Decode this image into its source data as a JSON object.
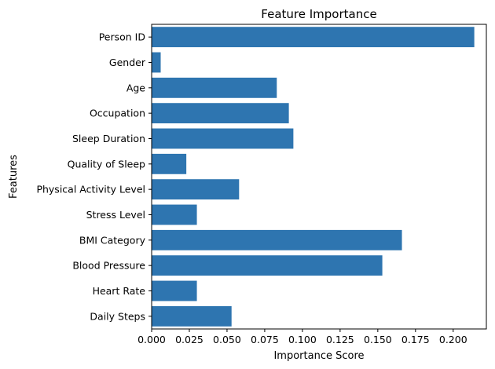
{
  "chart_data": {
    "type": "bar",
    "orientation": "horizontal",
    "title": "Feature Importance",
    "xlabel": "Importance Score",
    "ylabel": "Features",
    "categories": [
      "Person ID",
      "Gender",
      "Age",
      "Occupation",
      "Sleep Duration",
      "Quality of Sleep",
      "Physical Activity Level",
      "Stress Level",
      "BMI Category",
      "Blood Pressure",
      "Heart Rate",
      "Daily Steps"
    ],
    "values": [
      0.214,
      0.006,
      0.083,
      0.091,
      0.094,
      0.023,
      0.058,
      0.03,
      0.166,
      0.153,
      0.03,
      0.053
    ],
    "xlim": [
      0,
      0.222
    ],
    "xticks": [
      "0.000",
      "0.025",
      "0.050",
      "0.075",
      "0.100",
      "0.125",
      "0.150",
      "0.175",
      "0.200"
    ],
    "bar_color": "#2e75b0",
    "grid": false,
    "legend": "none"
  }
}
